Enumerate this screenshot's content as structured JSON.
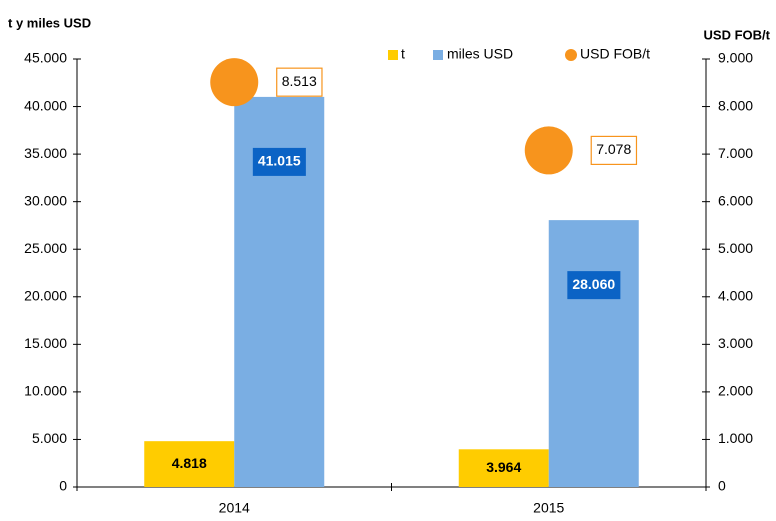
{
  "chart_data": {
    "type": "bar",
    "y_label": "t y miles USD",
    "y2_label": "USD FOB/t",
    "categories": [
      "2014",
      "2015"
    ],
    "series": [
      {
        "name": "t",
        "color": "#ffcc00",
        "values": [
          4818,
          3964
        ],
        "value_labels": [
          "4.818",
          "3.964"
        ]
      },
      {
        "name": "miles USD",
        "color": "#7aaee3",
        "values": [
          41015,
          28060
        ],
        "value_labels": [
          "41.015",
          "28.060"
        ]
      },
      {
        "name": "USD FOB/t",
        "color": "#f7941d",
        "type": "scatter",
        "axis": "y2",
        "values": [
          8513,
          7078
        ],
        "value_labels": [
          "8.513",
          "7.078"
        ]
      }
    ],
    "ylim": [
      0,
      45000
    ],
    "yticks": [
      {
        "value": 0,
        "label": "0"
      },
      {
        "value": 5000,
        "label": "5.000"
      },
      {
        "value": 10000,
        "label": "10.000"
      },
      {
        "value": 15000,
        "label": "15.000"
      },
      {
        "value": 20000,
        "label": "20.000"
      },
      {
        "value": 25000,
        "label": "25.000"
      },
      {
        "value": 30000,
        "label": "30.000"
      },
      {
        "value": 35000,
        "label": "35.000"
      },
      {
        "value": 40000,
        "label": "40.000"
      },
      {
        "value": 45000,
        "label": "45.000"
      }
    ],
    "y2lim": [
      0,
      9000
    ],
    "y2ticks": [
      {
        "value": 0,
        "label": "0"
      },
      {
        "value": 1000,
        "label": "1.000"
      },
      {
        "value": 2000,
        "label": "2.000"
      },
      {
        "value": 3000,
        "label": "3.000"
      },
      {
        "value": 4000,
        "label": "4.000"
      },
      {
        "value": 5000,
        "label": "5.000"
      },
      {
        "value": 6000,
        "label": "6.000"
      },
      {
        "value": 7000,
        "label": "7.000"
      },
      {
        "value": 8000,
        "label": "8.000"
      },
      {
        "value": 9000,
        "label": "9.000"
      }
    ],
    "legend": "top"
  }
}
